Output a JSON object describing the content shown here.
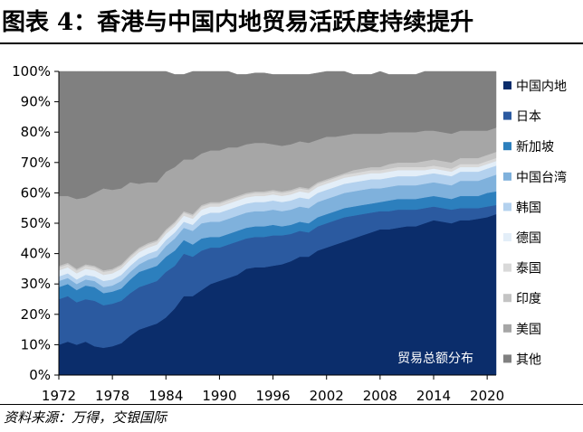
{
  "page": {
    "title": "图表 4：香港与中国内地贸易活跃度持续提升",
    "source": "资料来源：万得，交银国际"
  },
  "chart_data": {
    "type": "area",
    "stacked": true,
    "title": "图表 4：香港与中国内地贸易活跃度持续提升",
    "annotation": "贸易总额分布",
    "xlabel": "",
    "ylabel": "",
    "x": [
      1972,
      1973,
      1974,
      1975,
      1976,
      1977,
      1978,
      1979,
      1980,
      1981,
      1982,
      1983,
      1984,
      1985,
      1986,
      1987,
      1988,
      1989,
      1990,
      1991,
      1992,
      1993,
      1994,
      1995,
      1996,
      1997,
      1998,
      1999,
      2000,
      2001,
      2002,
      2003,
      2004,
      2005,
      2006,
      2007,
      2008,
      2009,
      2010,
      2011,
      2012,
      2013,
      2014,
      2015,
      2016,
      2017,
      2018,
      2019,
      2020,
      2021
    ],
    "xticks": [
      "1972",
      "1978",
      "1984",
      "1990",
      "1996",
      "2002",
      "2008",
      "2014",
      "2020"
    ],
    "yticks": [
      "0%",
      "10%",
      "20%",
      "30%",
      "40%",
      "50%",
      "60%",
      "70%",
      "80%",
      "90%",
      "100%"
    ],
    "ylim": [
      0,
      100
    ],
    "unit": "%",
    "series": [
      {
        "name": "中国内地",
        "color": "#0b2d6b",
        "values": [
          10,
          11,
          10,
          11,
          9.5,
          9,
          9.5,
          10.5,
          13,
          15,
          16,
          17,
          19,
          22,
          26,
          26,
          28,
          30,
          31,
          32,
          33,
          35,
          35.5,
          35.5,
          36,
          36.5,
          37.5,
          39,
          39,
          41,
          42,
          43,
          44,
          45,
          46,
          47,
          48,
          48,
          48.5,
          49,
          49,
          50,
          51,
          50.5,
          50,
          51,
          51,
          51.5,
          52,
          53
        ]
      },
      {
        "name": "日本",
        "color": "#2b5aa0",
        "values": [
          15,
          15,
          14,
          14,
          15,
          14,
          14,
          14,
          14,
          14,
          14,
          14,
          15,
          14,
          14,
          13,
          13,
          12,
          11,
          11,
          11,
          10,
          10,
          10,
          10,
          9.5,
          9,
          8.5,
          8,
          8,
          8,
          8,
          8,
          7.5,
          7,
          6.5,
          6,
          6,
          6,
          5.5,
          5.5,
          5,
          4.5,
          4.5,
          4.5,
          4,
          4,
          3.5,
          3.5,
          3
        ]
      },
      {
        "name": "新加坡",
        "color": "#2c7fbd",
        "values": [
          4,
          4,
          4,
          4.5,
          4.5,
          4,
          4,
          4,
          4.5,
          5,
          5,
          5,
          5,
          5,
          4.5,
          4,
          4,
          3.5,
          3.5,
          3.5,
          3.5,
          3.5,
          3.5,
          3.5,
          3.5,
          3,
          3,
          3,
          3,
          3,
          3,
          3,
          3,
          3,
          3,
          3,
          3,
          3.5,
          3.5,
          3.5,
          3.5,
          3.5,
          3.5,
          3.5,
          3.5,
          4,
          4,
          4,
          4.5,
          4.5
        ]
      },
      {
        "name": "中国台湾",
        "color": "#7fb1dc",
        "values": [
          2,
          2,
          2,
          2,
          2,
          2,
          2,
          2.5,
          2.5,
          2.5,
          3,
          3,
          3.5,
          4,
          4,
          4.5,
          5,
          5,
          5,
          5,
          5,
          5,
          5,
          5,
          5,
          5,
          5,
          5,
          5,
          5,
          5,
          5,
          5,
          5,
          5,
          5,
          4.5,
          4.5,
          4.5,
          4.5,
          4.5,
          4.5,
          4.5,
          4.5,
          4.5,
          5,
          5,
          5,
          5,
          5.5
        ]
      },
      {
        "name": "韩国",
        "color": "#b3d1ee",
        "values": [
          1.5,
          1.5,
          1.5,
          1.5,
          1.5,
          2,
          2,
          2,
          2,
          2,
          2,
          2,
          2,
          2,
          2,
          2,
          2.5,
          3,
          3,
          3,
          3,
          3,
          3,
          3,
          3,
          3,
          3,
          3,
          3,
          3,
          3,
          3,
          3,
          3,
          3,
          3,
          3,
          3,
          3,
          3,
          3,
          3,
          3,
          3,
          3,
          3,
          3,
          3,
          3,
          3
        ]
      },
      {
        "name": "德国",
        "color": "#e3eef8",
        "values": [
          2,
          2,
          2,
          2,
          2,
          2,
          2,
          2,
          2,
          2,
          2,
          2,
          2,
          2,
          2,
          2,
          2,
          2,
          2,
          2,
          2,
          2,
          2,
          2,
          2,
          2,
          2,
          2,
          2,
          2,
          2,
          2,
          2,
          2,
          2,
          2,
          2,
          2,
          2,
          2,
          2,
          1.5,
          1.5,
          1.5,
          1.5,
          1.5,
          1.5,
          1.5,
          1.5,
          1.5
        ]
      },
      {
        "name": "泰国",
        "color": "#d9d9d9",
        "values": [
          1,
          1,
          1,
          1,
          1,
          1,
          1,
          1,
          1,
          1,
          1,
          1,
          1,
          1,
          1,
          1,
          1,
          1,
          1,
          1,
          1,
          1,
          1,
          1,
          1,
          1,
          1,
          1,
          1,
          1,
          1,
          1,
          1,
          1,
          1,
          1,
          1,
          1,
          1,
          1,
          1,
          1,
          1,
          1,
          1,
          1,
          1,
          1,
          1,
          1
        ]
      },
      {
        "name": "印度",
        "color": "#c4c4c4",
        "values": [
          0.5,
          0.5,
          0.5,
          0.5,
          0.5,
          0.5,
          0.5,
          0.5,
          0.5,
          0.5,
          0.5,
          0.5,
          0.5,
          0.5,
          0.5,
          0.5,
          0.5,
          0.5,
          0.5,
          0.5,
          0.5,
          0.5,
          0.5,
          0.5,
          0.5,
          0.5,
          0.5,
          0.5,
          0.5,
          0.5,
          0.5,
          0.5,
          0.5,
          1,
          1,
          1,
          1,
          1.5,
          1.5,
          1.5,
          1.5,
          2,
          2,
          2,
          2,
          2,
          2,
          2,
          2,
          2
        ]
      },
      {
        "name": "美国",
        "color": "#a6a6a6",
        "values": [
          23,
          22,
          23,
          22,
          24,
          27,
          26,
          25,
          24,
          21,
          20,
          19,
          19,
          18,
          17,
          18,
          17,
          17,
          17,
          17,
          16,
          16,
          16,
          16,
          15,
          15,
          15,
          15,
          15,
          14,
          14,
          13,
          12.5,
          12,
          11.5,
          11,
          11,
          10.5,
          10,
          10,
          10,
          10,
          9.5,
          9.5,
          9.5,
          9,
          9,
          9,
          8,
          8
        ]
      },
      {
        "name": "其他",
        "color": "#808080",
        "values": [
          41,
          41,
          42,
          41.5,
          40,
          38.5,
          39,
          38.5,
          36.5,
          37,
          36.5,
          36.5,
          33,
          30.5,
          28,
          29,
          27,
          26,
          26,
          25,
          24,
          23,
          23,
          23,
          23,
          23.5,
          23,
          22,
          22.5,
          22,
          21.5,
          21.5,
          21,
          19.5,
          19.5,
          19.5,
          20.5,
          19,
          19,
          19,
          19,
          19.5,
          19.5,
          20,
          20.5,
          20.5,
          20.5,
          20.5,
          20.5,
          19.5
        ]
      }
    ]
  }
}
